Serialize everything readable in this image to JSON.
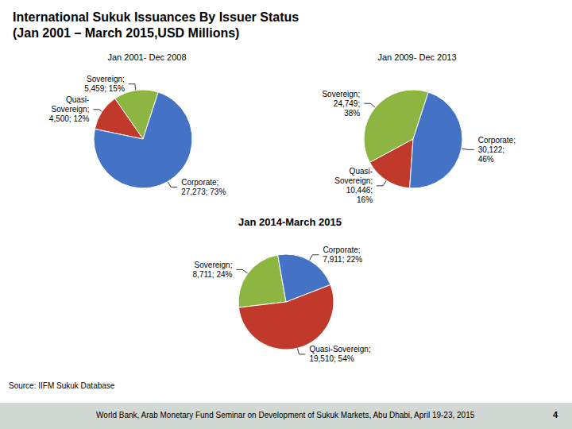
{
  "title": "International Sukuk Issuances By Issuer Status",
  "subtitle": "(Jan 2001 – March 2015,USD Millions)",
  "annotations": [
    "Source: IIFM Sukuk Database",
    "World Bank, Arab Monetary Fund Seminar on Development of Sukuk Markets, Abu Dhabi, April 19-23, 2015",
    "4"
  ],
  "chart_data": [
    {
      "type": "pie",
      "title": "Jan 2001- Dec 2008",
      "categories": [
        "Sovereign",
        "Quasi-Sovereign",
        "Corporate"
      ],
      "values": [
        5459,
        4500,
        27273
      ],
      "value_labels": [
        "Sovereign;\n5,459; 15%",
        "Quasi-\nSovereign;\n4,500; 12%",
        "Corporate;\n27,273; 73%"
      ],
      "colors": [
        "#8db541",
        "#c0392b",
        "#4472c4"
      ]
    },
    {
      "type": "pie",
      "title": "Jan 2009- Dec 2013",
      "categories": [
        "Sovereign",
        "Quasi-Sovereign",
        "Corporate"
      ],
      "values": [
        24749,
        10446,
        30122
      ],
      "value_labels": [
        "Sovereign;\n24,749;\n38%",
        "Quasi-\nSovereign;\n10,446;\n16%",
        "Corporate;\n30,122;\n46%"
      ],
      "colors": [
        "#8db541",
        "#c0392b",
        "#4472c4"
      ]
    },
    {
      "type": "pie",
      "title": "Jan 2014-March 2015",
      "categories": [
        "Sovereign",
        "Quasi-Sovereign",
        "Corporate"
      ],
      "values": [
        8711,
        19510,
        7911
      ],
      "value_labels": [
        "Sovereign;\n8,711; 24%",
        "Quasi-Sovereign;\n19,510; 54%",
        "Corporate;\n7,911; 22%"
      ],
      "colors": [
        "#8db541",
        "#c0392b",
        "#4472c4"
      ]
    }
  ]
}
